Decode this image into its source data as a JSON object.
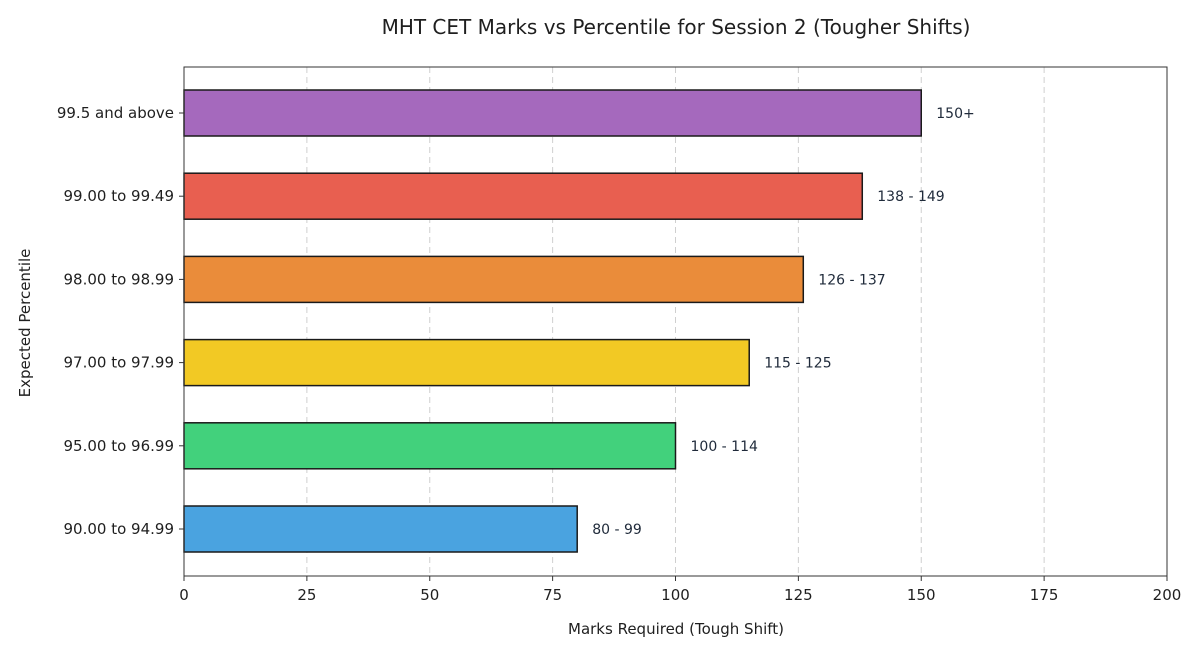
{
  "chart_data": {
    "type": "bar",
    "orientation": "horizontal",
    "title": "MHT CET Marks vs Percentile for Session 2 (Tougher Shifts)",
    "xlabel": "Marks Required (Tough Shift)",
    "ylabel": "Expected Percentile",
    "xlim": [
      0,
      200
    ],
    "xticks": [
      0,
      25,
      50,
      75,
      100,
      125,
      150,
      175,
      200
    ],
    "grid": "x-dashed",
    "categories": [
      "99.5 and above",
      "99.00 to 99.49",
      "98.00 to 98.99",
      "97.00 to 97.99",
      "95.00 to 96.99",
      "90.00 to 94.99"
    ],
    "values": [
      150,
      138,
      126,
      115,
      100,
      80
    ],
    "data_labels": [
      "150+",
      "138 - 149",
      "126 - 137",
      "115 - 125",
      "100 - 114",
      "80 - 99"
    ],
    "colors": [
      "#a569bd",
      "#e85f50",
      "#ea8c3a",
      "#f2c924",
      "#42d17c",
      "#4aa3e0"
    ]
  }
}
